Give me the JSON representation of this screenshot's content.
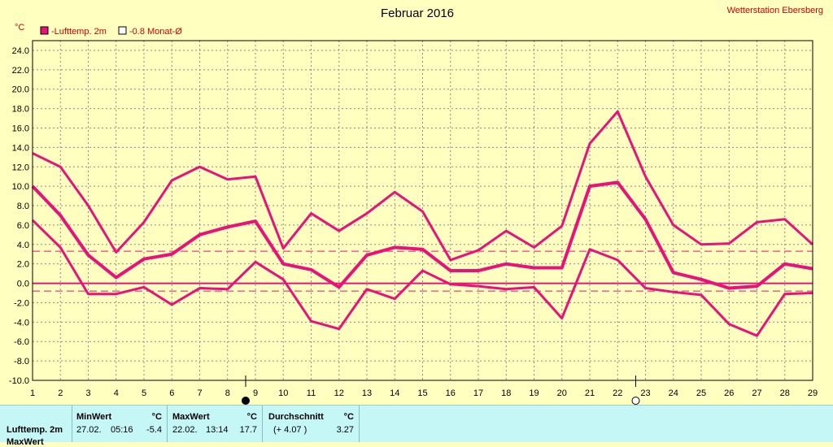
{
  "colors": {
    "background": "#ffffc0",
    "series": "#e8127a",
    "title": "#000000",
    "station": "#cc0000",
    "grid": "#8a8a8a",
    "panel": "#c6f7f7"
  },
  "chart_data": {
    "type": "line",
    "title": "Februar 2016",
    "station": "Wetterstation Ebersberg",
    "yunit": "°C",
    "legend": [
      {
        "label": "-Lufttemp. 2m",
        "marker": "filled-square"
      },
      {
        "label": "-0.8 Monat-Ø",
        "marker": "open-square"
      }
    ],
    "x": [
      1,
      2,
      3,
      4,
      5,
      6,
      7,
      8,
      9,
      10,
      11,
      12,
      13,
      14,
      15,
      16,
      17,
      18,
      19,
      20,
      21,
      22,
      23,
      24,
      25,
      26,
      27,
      28,
      29
    ],
    "xlim": [
      1,
      29
    ],
    "ylim": [
      -10,
      25
    ],
    "yticks": [
      "24.0",
      "22.0",
      "20.0",
      "18.0",
      "16.0",
      "14.0",
      "12.0",
      "10.0",
      "8.0",
      "6.0",
      "4.0",
      "2.0",
      "0.0",
      "-2.0",
      "-4.0",
      "-6.0",
      "-8.0",
      "-10.0"
    ],
    "grid": true,
    "series": [
      {
        "values": [
          13.4,
          12.0,
          8.0,
          3.2,
          6.3,
          10.6,
          12.0,
          10.7,
          11.0,
          3.6,
          7.2,
          5.4,
          7.2,
          9.4,
          7.4,
          2.4,
          3.4,
          5.4,
          3.7,
          5.9,
          14.4,
          17.7,
          11.0,
          6.0,
          4.0,
          4.1,
          6.3,
          6.6,
          4.0
        ]
      },
      {
        "values": [
          10.0,
          7.0,
          2.9,
          0.6,
          2.5,
          3.0,
          5.0,
          5.8,
          6.4,
          2.0,
          1.4,
          -0.4,
          2.9,
          3.7,
          3.5,
          1.3,
          1.3,
          2.0,
          1.6,
          1.6,
          10.0,
          10.4,
          6.6,
          1.1,
          0.4,
          -0.5,
          -0.3,
          2.0,
          1.5
        ]
      },
      {
        "values": [
          6.5,
          3.7,
          -1.1,
          -1.1,
          -0.4,
          -2.2,
          -0.5,
          -0.6,
          2.2,
          0.4,
          -3.9,
          -4.7,
          -0.6,
          -1.6,
          1.3,
          -0.1,
          -0.3,
          -0.6,
          -0.4,
          -3.6,
          3.5,
          2.4,
          -0.5,
          -0.9,
          -1.2,
          -4.2,
          -5.4,
          -1.1,
          -1.0
        ]
      }
    ],
    "reference_lines": [
      {
        "y": 0.0,
        "style": "solid"
      },
      {
        "y": 3.3,
        "style": "dashed"
      },
      {
        "y": -0.8,
        "style": "dashed"
      }
    ],
    "moon_markers": [
      {
        "x": 9,
        "phase": "new-moon"
      },
      {
        "x": 23,
        "phase": "full-moon"
      }
    ]
  },
  "table": {
    "row_label": "Lufttemp. 2m",
    "row_label_cut": "MaxWert",
    "min": {
      "header": "MinWert",
      "unit": "°C",
      "date": "27.02.",
      "time": "05:16",
      "value": "-5.4"
    },
    "max": {
      "header": "MaxWert",
      "unit": "°C",
      "date": "22.02.",
      "time": "13:14",
      "value": "17.7"
    },
    "avg": {
      "header": "Durchschnitt",
      "unit": "°C",
      "delta": "(+ 4.07 )",
      "value": "3.27"
    }
  }
}
